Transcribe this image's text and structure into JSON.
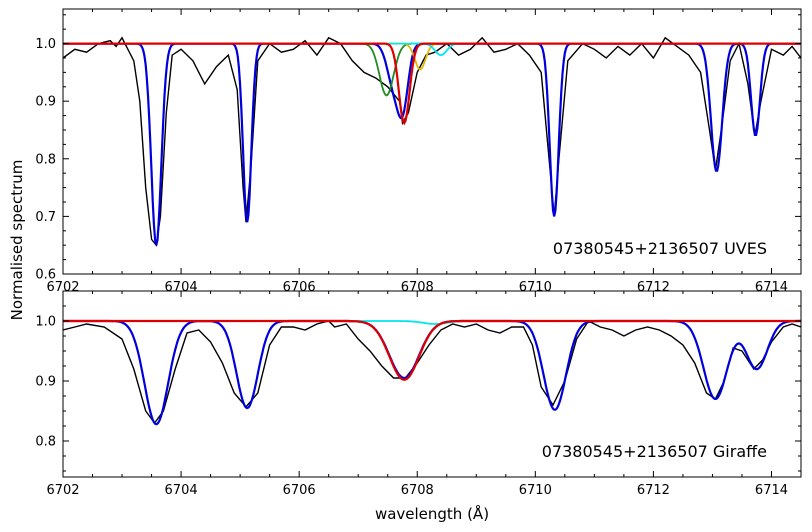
{
  "figure": {
    "ylabel": "Normalised spectrum",
    "xlabel": "wavelength (Å)"
  },
  "chart_data": [
    {
      "type": "line",
      "annotation": "07380545+2136507  UVES",
      "xlim": [
        6702,
        6714.5
      ],
      "ylim": [
        0.6,
        1.06
      ],
      "xticks": [
        "6702",
        "6704",
        "6706",
        "6708",
        "6710",
        "6712",
        "6714"
      ],
      "yticks": [
        "0.6",
        "0.7",
        "0.8",
        "0.9",
        "1.0"
      ],
      "xtick_values": [
        6702,
        6704,
        6706,
        6708,
        6710,
        6712,
        6714
      ],
      "ytick_values": [
        0.6,
        0.7,
        0.8,
        0.9,
        1.0
      ],
      "observed": {
        "color": "#000000",
        "points": [
          [
            6702.0,
            0.975
          ],
          [
            6702.2,
            0.99
          ],
          [
            6702.4,
            0.985
          ],
          [
            6702.6,
            1.0
          ],
          [
            6702.8,
            1.005
          ],
          [
            6702.9,
            0.995
          ],
          [
            6703.0,
            1.01
          ],
          [
            6703.1,
            0.99
          ],
          [
            6703.2,
            0.97
          ],
          [
            6703.3,
            0.9
          ],
          [
            6703.4,
            0.75
          ],
          [
            6703.5,
            0.66
          ],
          [
            6703.58,
            0.65
          ],
          [
            6703.65,
            0.7
          ],
          [
            6703.75,
            0.88
          ],
          [
            6703.85,
            0.98
          ],
          [
            6704.0,
            0.99
          ],
          [
            6704.2,
            0.97
          ],
          [
            6704.4,
            0.93
          ],
          [
            6704.6,
            0.96
          ],
          [
            6704.8,
            0.98
          ],
          [
            6704.95,
            0.92
          ],
          [
            6705.05,
            0.75
          ],
          [
            6705.1,
            0.69
          ],
          [
            6705.18,
            0.78
          ],
          [
            6705.3,
            0.97
          ],
          [
            6705.5,
            1.0
          ],
          [
            6705.7,
            0.985
          ],
          [
            6705.9,
            0.99
          ],
          [
            6706.1,
            1.005
          ],
          [
            6706.3,
            0.98
          ],
          [
            6706.5,
            1.01
          ],
          [
            6706.7,
            1.0
          ],
          [
            6706.9,
            0.97
          ],
          [
            6707.1,
            0.95
          ],
          [
            6707.3,
            0.94
          ],
          [
            6707.5,
            0.925
          ],
          [
            6707.7,
            0.9
          ],
          [
            6707.75,
            0.862
          ],
          [
            6707.85,
            0.88
          ],
          [
            6708.0,
            0.95
          ],
          [
            6708.15,
            0.98
          ],
          [
            6708.3,
            0.985
          ],
          [
            6708.5,
            1.0
          ],
          [
            6708.7,
            0.98
          ],
          [
            6708.9,
            0.99
          ],
          [
            6709.1,
            1.01
          ],
          [
            6709.3,
            0.985
          ],
          [
            6709.5,
            0.99
          ],
          [
            6709.7,
            1.0
          ],
          [
            6709.9,
            0.98
          ],
          [
            6710.1,
            0.95
          ],
          [
            6710.25,
            0.78
          ],
          [
            6710.32,
            0.7
          ],
          [
            6710.4,
            0.8
          ],
          [
            6710.55,
            0.97
          ],
          [
            6710.8,
            1.0
          ],
          [
            6711.0,
            0.99
          ],
          [
            6711.2,
            0.975
          ],
          [
            6711.4,
            0.995
          ],
          [
            6711.6,
            0.98
          ],
          [
            6711.8,
            1.0
          ],
          [
            6712.0,
            0.975
          ],
          [
            6712.2,
            1.01
          ],
          [
            6712.4,
            0.995
          ],
          [
            6712.6,
            0.98
          ],
          [
            6712.8,
            0.95
          ],
          [
            6712.95,
            0.85
          ],
          [
            6713.05,
            0.78
          ],
          [
            6713.15,
            0.85
          ],
          [
            6713.3,
            0.97
          ],
          [
            6713.45,
            1.0
          ],
          [
            6713.6,
            0.93
          ],
          [
            6713.72,
            0.84
          ],
          [
            6713.82,
            0.9
          ],
          [
            6714.0,
            0.99
          ],
          [
            6714.2,
            0.98
          ],
          [
            6714.35,
            0.995
          ],
          [
            6714.5,
            0.975
          ]
        ]
      },
      "components": [
        {
          "role": "synthetic",
          "color": "#0000dd",
          "centers": [
            6703.58,
            6705.12,
            6707.6,
            6707.76,
            6710.32,
            6713.07,
            6713.73
          ],
          "depths": [
            0.35,
            0.31,
            0.07,
            0.1,
            0.3,
            0.222,
            0.16
          ],
          "sigmas": [
            0.085,
            0.07,
            0.11,
            0.09,
            0.075,
            0.095,
            0.075
          ]
        },
        {
          "role": "blend-1",
          "color": "#228b22",
          "centers": [
            6707.48
          ],
          "depths": [
            0.09
          ],
          "sigmas": [
            0.12
          ]
        },
        {
          "role": "blend-2",
          "color": "#e6b800",
          "centers": [
            6708.05
          ],
          "depths": [
            0.045
          ],
          "sigmas": [
            0.09
          ]
        },
        {
          "role": "blend-3",
          "color": "#00e5ee",
          "centers": [
            6708.4
          ],
          "depths": [
            0.02
          ],
          "sigmas": [
            0.1
          ]
        },
        {
          "role": "lithium",
          "color": "#dd0000",
          "centers": [
            6707.78
          ],
          "depths": [
            0.138
          ],
          "sigmas": [
            0.09
          ]
        }
      ]
    },
    {
      "type": "line",
      "annotation": "07380545+2136507  Giraffe",
      "xlim": [
        6702,
        6714.5
      ],
      "ylim": [
        0.74,
        1.05
      ],
      "xticks": [
        "6702",
        "6704",
        "6706",
        "6708",
        "6710",
        "6712",
        "6714"
      ],
      "yticks": [
        "0.8",
        "0.9",
        "1.0"
      ],
      "xtick_values": [
        6702,
        6704,
        6706,
        6708,
        6710,
        6712,
        6714
      ],
      "ytick_values": [
        0.8,
        0.9,
        1.0
      ],
      "observed": {
        "color": "#000000",
        "points": [
          [
            6702.0,
            0.985
          ],
          [
            6702.2,
            0.99
          ],
          [
            6702.4,
            0.995
          ],
          [
            6702.7,
            0.99
          ],
          [
            6703.0,
            0.97
          ],
          [
            6703.2,
            0.92
          ],
          [
            6703.4,
            0.85
          ],
          [
            6703.55,
            0.83
          ],
          [
            6703.7,
            0.85
          ],
          [
            6703.9,
            0.92
          ],
          [
            6704.1,
            0.98
          ],
          [
            6704.3,
            0.985
          ],
          [
            6704.5,
            0.965
          ],
          [
            6704.7,
            0.93
          ],
          [
            6704.9,
            0.88
          ],
          [
            6705.1,
            0.857
          ],
          [
            6705.3,
            0.88
          ],
          [
            6705.5,
            0.96
          ],
          [
            6705.7,
            0.99
          ],
          [
            6705.9,
            0.99
          ],
          [
            6706.1,
            0.985
          ],
          [
            6706.3,
            0.995
          ],
          [
            6706.5,
            1.0
          ],
          [
            6706.6,
            0.99
          ],
          [
            6706.8,
            0.995
          ],
          [
            6707.0,
            0.97
          ],
          [
            6707.2,
            0.95
          ],
          [
            6707.4,
            0.925
          ],
          [
            6707.6,
            0.905
          ],
          [
            6707.8,
            0.905
          ],
          [
            6708.0,
            0.93
          ],
          [
            6708.2,
            0.96
          ],
          [
            6708.4,
            0.985
          ],
          [
            6708.6,
            0.995
          ],
          [
            6708.8,
            0.99
          ],
          [
            6709.0,
            0.995
          ],
          [
            6709.2,
            0.985
          ],
          [
            6709.4,
            0.98
          ],
          [
            6709.6,
            0.99
          ],
          [
            6709.8,
            0.99
          ],
          [
            6709.95,
            0.96
          ],
          [
            6710.1,
            0.89
          ],
          [
            6710.3,
            0.86
          ],
          [
            6710.5,
            0.9
          ],
          [
            6710.7,
            0.97
          ],
          [
            6710.9,
            1.0
          ],
          [
            6711.1,
            0.99
          ],
          [
            6711.3,
            0.985
          ],
          [
            6711.5,
            0.975
          ],
          [
            6711.7,
            0.985
          ],
          [
            6711.9,
            0.99
          ],
          [
            6712.1,
            0.985
          ],
          [
            6712.3,
            0.975
          ],
          [
            6712.5,
            0.96
          ],
          [
            6712.7,
            0.93
          ],
          [
            6712.9,
            0.88
          ],
          [
            6713.05,
            0.87
          ],
          [
            6713.2,
            0.9
          ],
          [
            6713.35,
            0.955
          ],
          [
            6713.5,
            0.95
          ],
          [
            6713.7,
            0.92
          ],
          [
            6713.85,
            0.935
          ],
          [
            6714.0,
            0.965
          ],
          [
            6714.2,
            0.99
          ],
          [
            6714.35,
            0.995
          ],
          [
            6714.5,
            0.99
          ]
        ]
      },
      "components": [
        {
          "role": "synthetic",
          "color": "#0000dd",
          "centers": [
            6703.58,
            6705.12,
            6707.78,
            6710.33,
            6713.05,
            6713.75
          ],
          "depths": [
            0.172,
            0.145,
            0.095,
            0.148,
            0.13,
            0.08
          ],
          "sigmas": [
            0.2,
            0.18,
            0.25,
            0.19,
            0.2,
            0.18
          ]
        },
        {
          "role": "blend",
          "color": "#00e5ee",
          "centers": [
            6708.3
          ],
          "depths": [
            0.005
          ],
          "sigmas": [
            0.2
          ]
        },
        {
          "role": "lithium",
          "color": "#dd0000",
          "centers": [
            6707.78
          ],
          "depths": [
            0.098
          ],
          "sigmas": [
            0.25
          ]
        }
      ]
    }
  ]
}
